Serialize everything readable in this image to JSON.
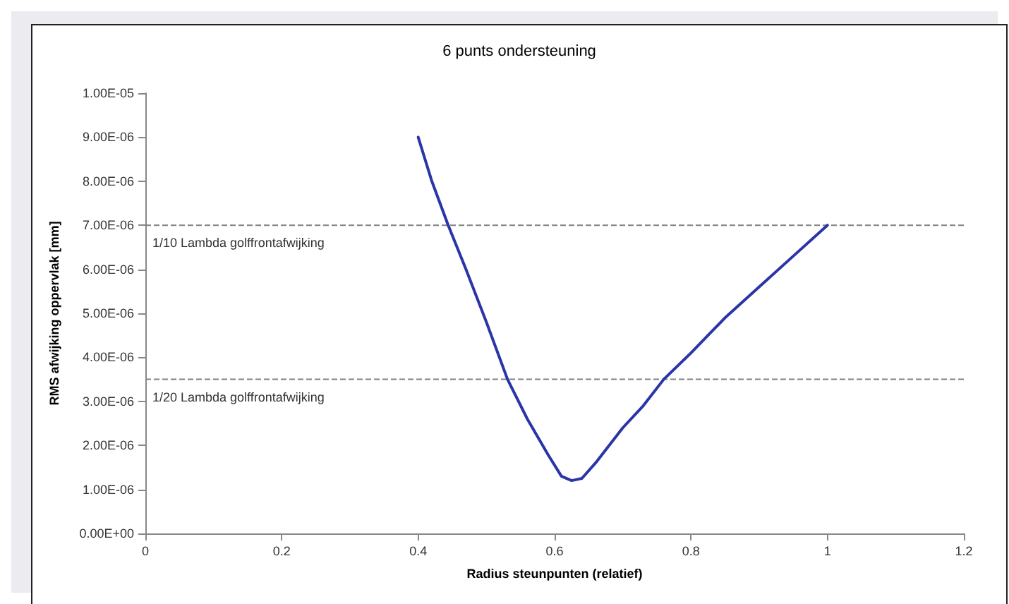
{
  "chart_data": {
    "type": "line",
    "title": "6 punts ondersteuning",
    "xlabel": "Radius steunpunten (relatief)",
    "ylabel": "RMS afwijking oppervlak [mm]",
    "x": [
      0.4,
      0.42,
      0.444,
      0.47,
      0.5,
      0.531,
      0.56,
      0.59,
      0.61,
      0.625,
      0.64,
      0.66,
      0.7,
      0.73,
      0.76,
      0.8,
      0.85,
      0.9,
      0.95,
      1.0
    ],
    "series": [
      {
        "color": "#2a35a8",
        "values": [
          9e-06,
          8e-06,
          7e-06,
          6e-06,
          4.8e-06,
          3.5e-06,
          2.6e-06,
          1.8e-06,
          1.3e-06,
          1.2e-06,
          1.25e-06,
          1.6e-06,
          2.4e-06,
          2.9e-06,
          3.5e-06,
          4.1e-06,
          4.9e-06,
          5.6e-06,
          6.3e-06,
          7e-06
        ]
      }
    ],
    "xlim": [
      0,
      1.2
    ],
    "xticks": [
      0,
      0.2,
      0.4,
      0.6,
      0.8,
      1,
      1.2
    ],
    "ylim": [
      0,
      1e-05
    ],
    "yticks": [
      {
        "value": 0,
        "label": "0.00E+00"
      },
      {
        "value": 1e-06,
        "label": "1.00E-06"
      },
      {
        "value": 2e-06,
        "label": "2.00E-06"
      },
      {
        "value": 3e-06,
        "label": "3.00E-06"
      },
      {
        "value": 4e-06,
        "label": "4.00E-06"
      },
      {
        "value": 5e-06,
        "label": "5.00E-06"
      },
      {
        "value": 6e-06,
        "label": "6.00E-06"
      },
      {
        "value": 7e-06,
        "label": "7.00E-06"
      },
      {
        "value": 8e-06,
        "label": "8.00E-06"
      },
      {
        "value": 9e-06,
        "label": "9.00E-06"
      },
      {
        "value": 1e-05,
        "label": "1.00E-05"
      }
    ],
    "ref_lines": [
      {
        "axis": "y",
        "value": 7e-06,
        "label": "1/10 Lambda golffrontafwijking",
        "color": "#808080",
        "line_style": "dashed"
      },
      {
        "axis": "y",
        "value": 3.5e-06,
        "label": "1/20 Lambda golffrontafwijking",
        "color": "#808080",
        "line_style": "dashed"
      }
    ],
    "grid": false,
    "marker": "none",
    "line_style": "solid"
  }
}
